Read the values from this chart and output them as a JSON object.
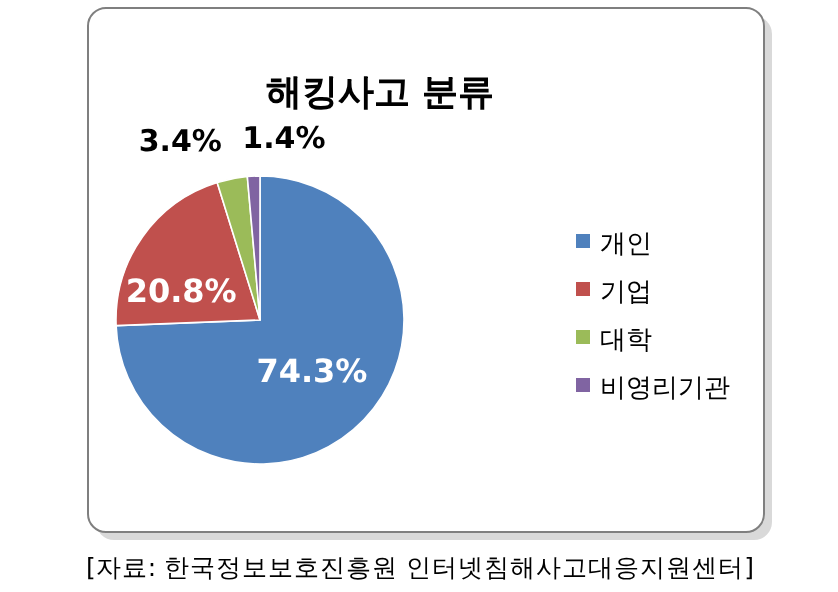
{
  "chart_data": {
    "type": "pie",
    "title": "해킹사고 분류",
    "categories": [
      "개인",
      "기업",
      "대학",
      "비영리기관"
    ],
    "values": [
      74.3,
      20.8,
      3.4,
      1.4
    ],
    "value_labels": [
      "74.3%",
      "20.8%",
      "3.4%",
      "1.4%"
    ],
    "colors": [
      "#4f81bd",
      "#c0504d",
      "#9bbb59",
      "#8064a2"
    ],
    "legend": "right",
    "annotations": [
      "[자료: 한국정보보호진흥원 인터넷침해사고대응지원센터]"
    ]
  }
}
